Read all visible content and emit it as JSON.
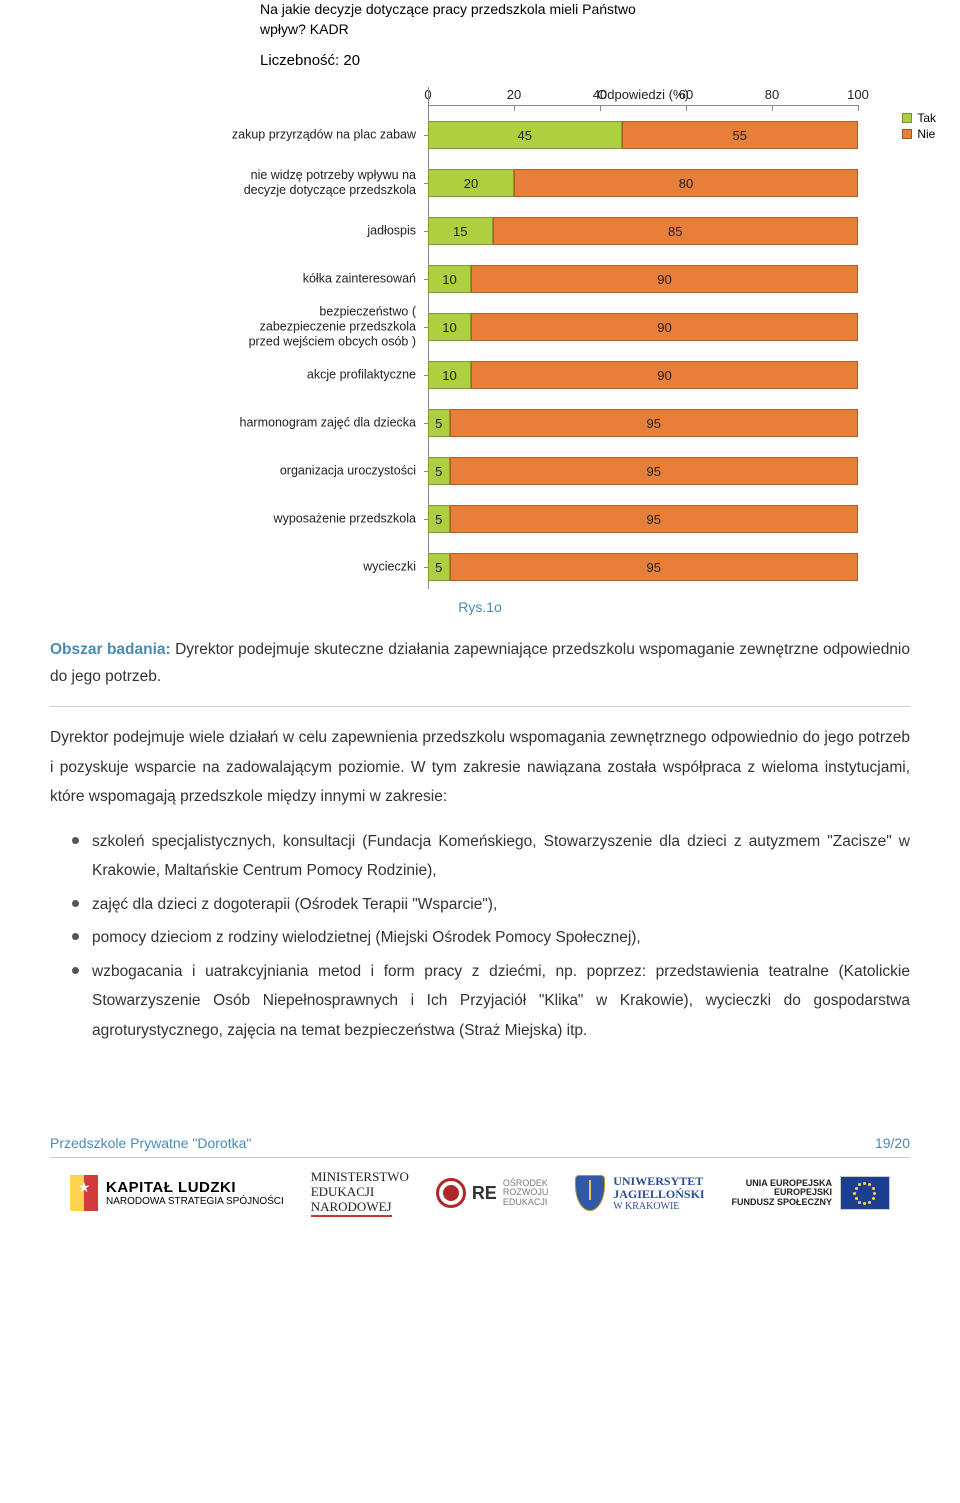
{
  "chart": {
    "type": "stacked-horizontal-bar",
    "title_l1": "Na jakie decyzje dotyczące pracy przedszkola mieli Państwo",
    "title_l2": "wpływ? KADR",
    "subtitle": "Liczebność: 20",
    "x_label": "Odpowiedzi (%)",
    "x_ticks": [
      0,
      20,
      40,
      60,
      80,
      100
    ],
    "xlim": [
      0,
      100
    ],
    "legend": [
      {
        "label": "Tak",
        "color": "#b0cf3e"
      },
      {
        "label": "Nie",
        "color": "#e77e39"
      }
    ],
    "bar_colors": {
      "tak": "#b0cf3e",
      "nie": "#e77e39"
    },
    "categories": [
      {
        "label": "zakup przyrządów na plac zabaw",
        "tak": 45,
        "nie": 55
      },
      {
        "label": "nie widzę potrzeby wpływu na decyzje dotyczące przedszkola",
        "tak": 20,
        "nie": 80
      },
      {
        "label": "jadłospis",
        "tak": 15,
        "nie": 85
      },
      {
        "label": "kółka zainteresowań",
        "tak": 10,
        "nie": 90
      },
      {
        "label": "bezpieczeństwo ( zabezpieczenie przedszkola przed wejściem obcych osób )",
        "tak": 10,
        "nie": 90
      },
      {
        "label": "akcje profilaktyczne",
        "tak": 10,
        "nie": 90
      },
      {
        "label": "harmonogram zajęć dla dziecka",
        "tak": 5,
        "nie": 95
      },
      {
        "label": "organizacja uroczystości",
        "tak": 5,
        "nie": 95
      },
      {
        "label": "wyposażenie przedszkola",
        "tak": 5,
        "nie": 95
      },
      {
        "label": "wycieczki",
        "tak": 5,
        "nie": 95
      }
    ]
  },
  "figure_number": "Rys.1o",
  "section_label": "Obszar badania:",
  "section_text": "Dyrektor podejmuje skuteczne działania zapewniające przedszkolu wspomaganie zewnętrzne odpowiednio do jego potrzeb.",
  "paragraph": "Dyrektor podejmuje wiele działań w celu zapewnienia przedszkolu wspomagania zewnętrznego odpowiednio do jego potrzeb i pozyskuje wsparcie na zadowalającym poziomie. W tym zakresie nawiązana została współpraca z wieloma instytucjami, które wspomagają przedszkole między innymi w zakresie:",
  "bullets": [
    "szkoleń specjalistycznych, konsultacji (Fundacja Komeńskiego, Stowarzyszenie dla dzieci z autyzmem \"Zacisze\" w Krakowie, Maltańskie Centrum Pomocy Rodzinie),",
    "zajęć dla dzieci z dogoterapii (Ośrodek Terapii \"Wsparcie\"),",
    "pomocy dzieciom z rodziny wielodzietnej (Miejski Ośrodek Pomocy Społecznej),",
    "wzbogacania i uatrakcyjniania metod i form pracy z dziećmi, np. poprzez: przedstawienia teatralne (Katolickie Stowarzyszenie Osób Niepełnosprawnych i Ich Przyjaciół \"Klika\" w Krakowie), wycieczki do gospodarstwa agroturystycznego, zajęcia na temat bezpieczeństwa (Straż Miejska) itp."
  ],
  "footer": {
    "left": "Przedszkole Prywatne \"Dorotka\"",
    "right": "19/20",
    "logos": {
      "kapital_ludzki": {
        "line1": "KAPITAŁ LUDZKI",
        "line2": "NARODOWA STRATEGIA SPÓJNOŚCI"
      },
      "men": {
        "l1": "MINISTERSTWO",
        "l2": "EDUKACJI",
        "l3": "NARODOWEJ"
      },
      "ore": {
        "name": "RE",
        "sub1": "Ośrodek",
        "sub2": "Rozwoju",
        "sub3": "Edukacji"
      },
      "uj": {
        "l1": "UNIWERSYTET",
        "l2": "JAGIELLOŃSKI",
        "l3": "W KRAKOWIE"
      },
      "eu": {
        "l1": "UNIA EUROPEJSKA",
        "l2": "EUROPEJSKI",
        "l3": "FUNDUSZ SPOŁECZNY"
      }
    }
  }
}
